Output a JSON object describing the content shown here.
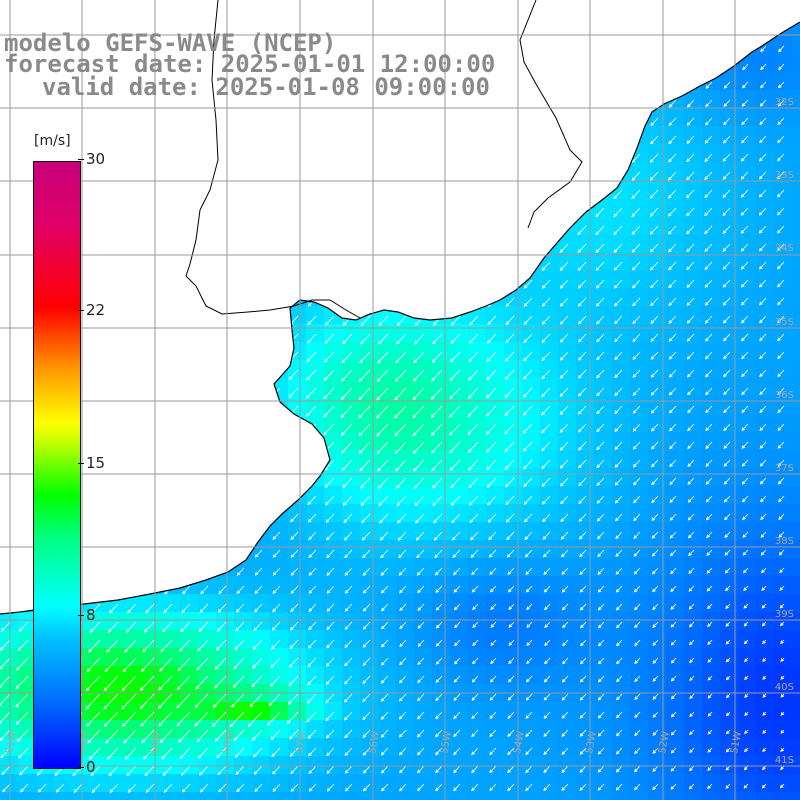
{
  "title_lines": [
    "modelo GEFS-WAVE (NCEP)",
    "forecast date: 2025-01-01 12:00:00",
    "valid date: 2025-01-08 09:00:00"
  ],
  "colorbar": {
    "unit": "[m/s]",
    "ticks": [
      "30",
      "22",
      "15",
      "8",
      "0"
    ],
    "tick_values": [
      30,
      22,
      15,
      8,
      0
    ],
    "range": [
      0,
      30
    ],
    "colors": [
      "#0000ff",
      "#0064ff",
      "#00ffff",
      "#00ff00",
      "#ffff00",
      "#ff0000",
      "#c8007a"
    ]
  },
  "map": {
    "lat_labels": [
      "32S",
      "33S",
      "34S",
      "35S",
      "36S",
      "37S",
      "38S",
      "39S",
      "40S",
      "41S"
    ],
    "lon_labels": [
      "61W",
      "60W",
      "59W",
      "58W",
      "57W",
      "56W",
      "55W",
      "54W",
      "53W",
      "52W",
      "51W"
    ],
    "land_color": "#ffffff",
    "coast_color": "#000000",
    "grid_color": "#9a9a9a",
    "arrow_color": "#ffffff"
  }
}
